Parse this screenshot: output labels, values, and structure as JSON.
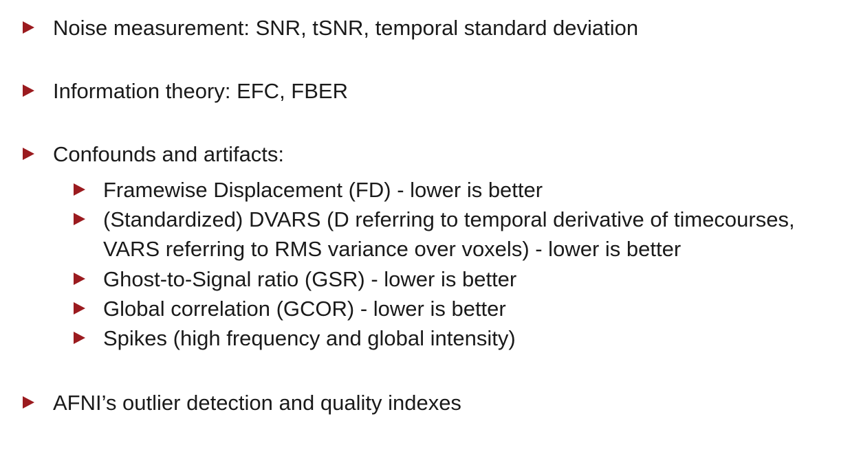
{
  "bullets": [
    {
      "text": "Noise measurement: SNR, tSNR, temporal standard deviation"
    },
    {
      "text": "Information theory: EFC, FBER"
    },
    {
      "text": "Confounds and artifacts:",
      "subitems": [
        {
          "text": "Framewise Displacement (FD) - lower is better"
        },
        {
          "text": "(Standardized) DVARS (D referring to temporal derivative of timecourses, VARS referring to RMS variance over voxels) - lower is better"
        },
        {
          "text": "Ghost-to-Signal ratio (GSR) - lower is better"
        },
        {
          "text": "Global correlation (GCOR) - lower is better"
        },
        {
          "text": "Spikes (high frequency and global intensity)"
        }
      ]
    },
    {
      "text": "AFNI’s outlier detection and quality indexes"
    }
  ],
  "colors": {
    "bullet": "#9b1b1f",
    "text": "#1a1a1a",
    "background": "#ffffff"
  }
}
